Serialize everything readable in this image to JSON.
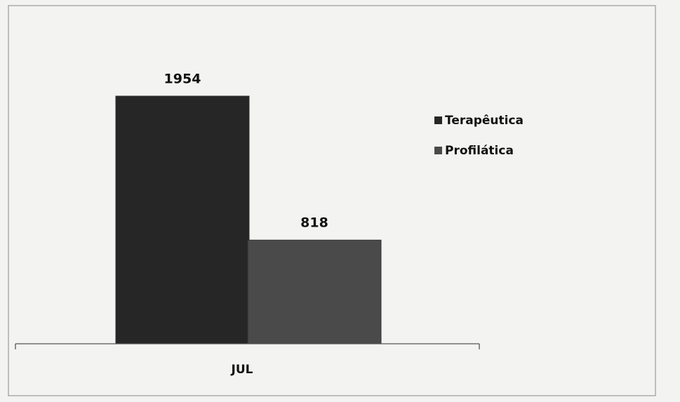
{
  "chart_data": {
    "type": "bar",
    "categories": [
      "JUL"
    ],
    "series": [
      {
        "name": "Terapêutica",
        "color": "#262626",
        "values": [
          1954
        ]
      },
      {
        "name": "Profilática",
        "color": "#4a4a4a",
        "values": [
          818
        ]
      }
    ],
    "legend": "right"
  }
}
